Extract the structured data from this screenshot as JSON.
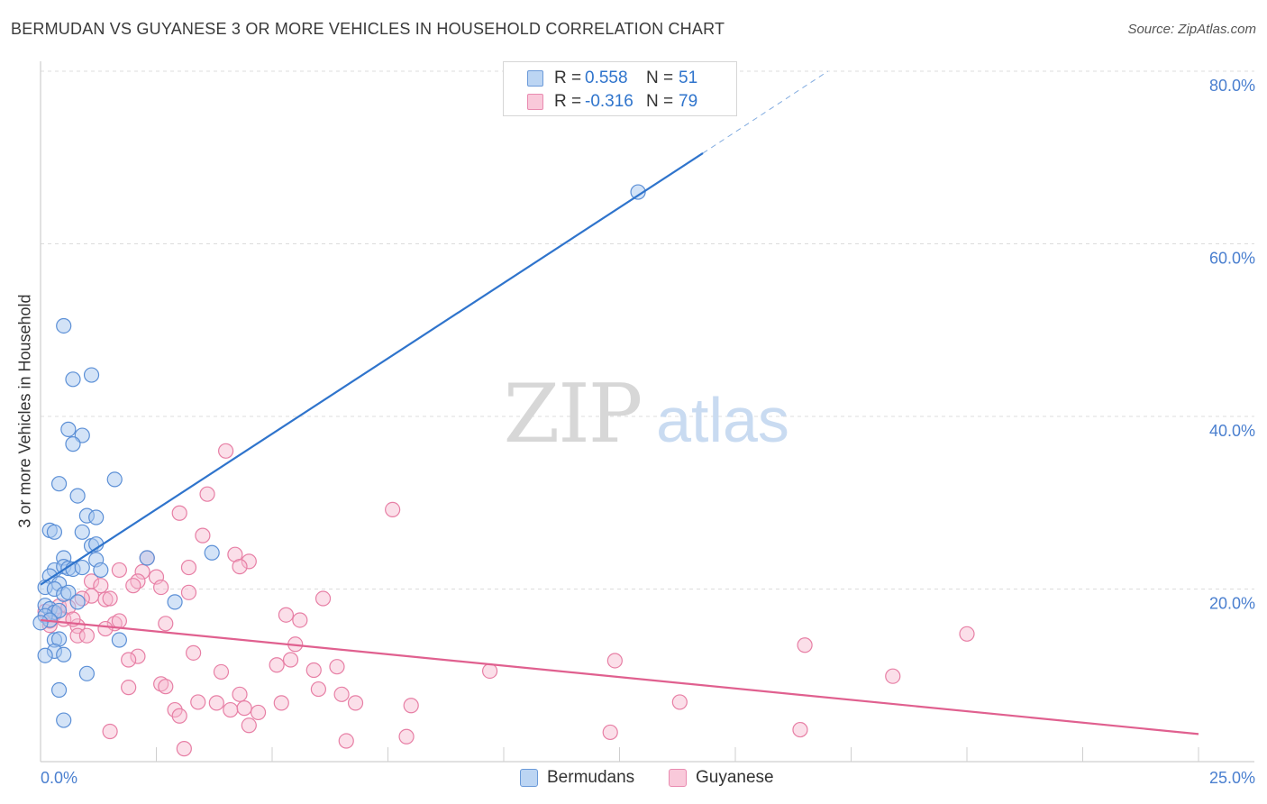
{
  "title": "BERMUDAN VS GUYANESE 3 OR MORE VEHICLES IN HOUSEHOLD CORRELATION CHART",
  "source": "Source: ZipAtlas.com",
  "colors": {
    "blue_fill": "#a8c8f0",
    "blue_stroke": "#5b8fd6",
    "blue_line": "#2f74cc",
    "pink_fill": "#f7b9cf",
    "pink_stroke": "#e77fa5",
    "pink_line": "#e0608f",
    "tick_text": "#4a7fcf",
    "watermark_zip": "#d7d7d7",
    "watermark_atlas": "#c9dbf1"
  },
  "legend": {
    "series": [
      {
        "r_label": "R =",
        "r_value": "0.558",
        "n_label": "N =",
        "n_value": "51"
      },
      {
        "r_label": "R =",
        "r_value": "-0.316",
        "n_label": "N =",
        "n_value": "79"
      }
    ]
  },
  "bottom_legend": [
    "Bermudans",
    "Guyanese"
  ],
  "watermark": {
    "zip": "ZIP",
    "atlas": "atlas"
  },
  "chart_data": {
    "type": "scatter",
    "title": "BERMUDAN VS GUYANESE 3 OR MORE VEHICLES IN HOUSEHOLD CORRELATION CHART",
    "xlabel": "",
    "ylabel": "3 or more Vehicles in Household",
    "xlim": [
      0,
      25
    ],
    "ylim": [
      0,
      80
    ],
    "x_tick_labels": [
      "0.0%",
      "25.0%"
    ],
    "y_ticks": [
      20,
      40,
      60,
      80
    ],
    "y_tick_labels": [
      "20.0%",
      "40.0%",
      "60.0%",
      "80.0%"
    ],
    "grid": true,
    "series": [
      {
        "name": "Bermudans",
        "R": 0.558,
        "N": 51,
        "trend": {
          "x0": 0,
          "y0": 20.5,
          "x1": 14.3,
          "y1": 70.5,
          "dash_x1": 17.0,
          "dash_y1": 80.0
        },
        "points": [
          [
            0.5,
            50.5
          ],
          [
            1.1,
            44.8
          ],
          [
            0.7,
            44.3
          ],
          [
            0.6,
            38.5
          ],
          [
            0.9,
            37.8
          ],
          [
            0.7,
            36.8
          ],
          [
            0.4,
            32.2
          ],
          [
            1.6,
            32.7
          ],
          [
            0.8,
            30.8
          ],
          [
            1.0,
            28.5
          ],
          [
            1.2,
            28.3
          ],
          [
            0.2,
            26.8
          ],
          [
            0.3,
            26.6
          ],
          [
            0.9,
            26.6
          ],
          [
            1.1,
            25.0
          ],
          [
            1.2,
            25.2
          ],
          [
            0.5,
            23.6
          ],
          [
            1.2,
            23.4
          ],
          [
            2.3,
            23.6
          ],
          [
            3.7,
            24.2
          ],
          [
            0.3,
            22.2
          ],
          [
            0.5,
            22.6
          ],
          [
            0.6,
            22.4
          ],
          [
            0.7,
            22.3
          ],
          [
            1.3,
            22.2
          ],
          [
            0.9,
            22.5
          ],
          [
            0.2,
            21.5
          ],
          [
            0.4,
            20.6
          ],
          [
            0.1,
            20.2
          ],
          [
            0.3,
            20.0
          ],
          [
            0.5,
            19.4
          ],
          [
            0.6,
            19.6
          ],
          [
            0.8,
            18.5
          ],
          [
            2.9,
            18.5
          ],
          [
            0.1,
            18.1
          ],
          [
            0.2,
            17.7
          ],
          [
            0.3,
            17.3
          ],
          [
            0.4,
            17.5
          ],
          [
            0.1,
            16.9
          ],
          [
            0.2,
            16.4
          ],
          [
            0.0,
            16.1
          ],
          [
            0.3,
            14.1
          ],
          [
            0.4,
            14.2
          ],
          [
            1.7,
            14.1
          ],
          [
            0.3,
            12.8
          ],
          [
            0.5,
            12.4
          ],
          [
            0.1,
            12.3
          ],
          [
            1.0,
            10.2
          ],
          [
            0.4,
            8.3
          ],
          [
            0.5,
            4.8
          ],
          [
            12.9,
            66.0
          ]
        ]
      },
      {
        "name": "Guyanese",
        "R": -0.316,
        "N": 79,
        "trend": {
          "x0": 0,
          "y0": 16.4,
          "x1": 25.0,
          "y1": 3.2
        },
        "points": [
          [
            4.0,
            36.0
          ],
          [
            3.6,
            31.0
          ],
          [
            7.6,
            29.2
          ],
          [
            3.0,
            28.8
          ],
          [
            3.5,
            26.2
          ],
          [
            4.2,
            24.0
          ],
          [
            4.5,
            23.2
          ],
          [
            2.3,
            23.6
          ],
          [
            3.2,
            22.5
          ],
          [
            4.3,
            22.6
          ],
          [
            1.7,
            22.2
          ],
          [
            2.2,
            22.0
          ],
          [
            2.5,
            21.4
          ],
          [
            2.1,
            20.9
          ],
          [
            2.0,
            20.4
          ],
          [
            1.1,
            20.9
          ],
          [
            1.3,
            20.4
          ],
          [
            2.6,
            20.2
          ],
          [
            1.1,
            19.2
          ],
          [
            1.4,
            18.8
          ],
          [
            1.5,
            18.9
          ],
          [
            3.2,
            19.6
          ],
          [
            6.1,
            18.9
          ],
          [
            0.9,
            18.9
          ],
          [
            0.4,
            18.0
          ],
          [
            0.6,
            17.9
          ],
          [
            0.1,
            17.4
          ],
          [
            0.3,
            17.1
          ],
          [
            0.2,
            16.3
          ],
          [
            0.5,
            16.5
          ],
          [
            1.6,
            16.0
          ],
          [
            1.7,
            16.3
          ],
          [
            2.7,
            16.0
          ],
          [
            5.3,
            17.0
          ],
          [
            5.6,
            16.4
          ],
          [
            0.8,
            15.7
          ],
          [
            0.8,
            14.6
          ],
          [
            1.0,
            14.6
          ],
          [
            5.5,
            13.6
          ],
          [
            3.3,
            12.6
          ],
          [
            2.1,
            12.2
          ],
          [
            1.9,
            11.8
          ],
          [
            5.4,
            11.8
          ],
          [
            5.1,
            11.2
          ],
          [
            6.4,
            11.0
          ],
          [
            5.9,
            10.6
          ],
          [
            3.9,
            10.4
          ],
          [
            9.7,
            10.5
          ],
          [
            12.4,
            11.7
          ],
          [
            16.5,
            13.5
          ],
          [
            18.4,
            9.9
          ],
          [
            20.0,
            14.8
          ],
          [
            2.6,
            9.0
          ],
          [
            2.7,
            8.7
          ],
          [
            1.9,
            8.6
          ],
          [
            6.0,
            8.4
          ],
          [
            4.3,
            7.8
          ],
          [
            6.5,
            7.8
          ],
          [
            3.4,
            6.9
          ],
          [
            3.8,
            6.8
          ],
          [
            5.2,
            6.8
          ],
          [
            6.8,
            6.8
          ],
          [
            8.0,
            6.5
          ],
          [
            13.8,
            6.9
          ],
          [
            2.9,
            6.0
          ],
          [
            4.1,
            6.0
          ],
          [
            4.4,
            6.2
          ],
          [
            4.7,
            5.7
          ],
          [
            3.0,
            5.3
          ],
          [
            4.5,
            4.2
          ],
          [
            1.5,
            3.5
          ],
          [
            12.3,
            3.4
          ],
          [
            16.4,
            3.7
          ],
          [
            7.9,
            2.9
          ],
          [
            6.6,
            2.4
          ],
          [
            3.1,
            1.5
          ],
          [
            0.7,
            16.5
          ],
          [
            0.2,
            15.8
          ],
          [
            1.4,
            15.4
          ]
        ]
      }
    ]
  }
}
